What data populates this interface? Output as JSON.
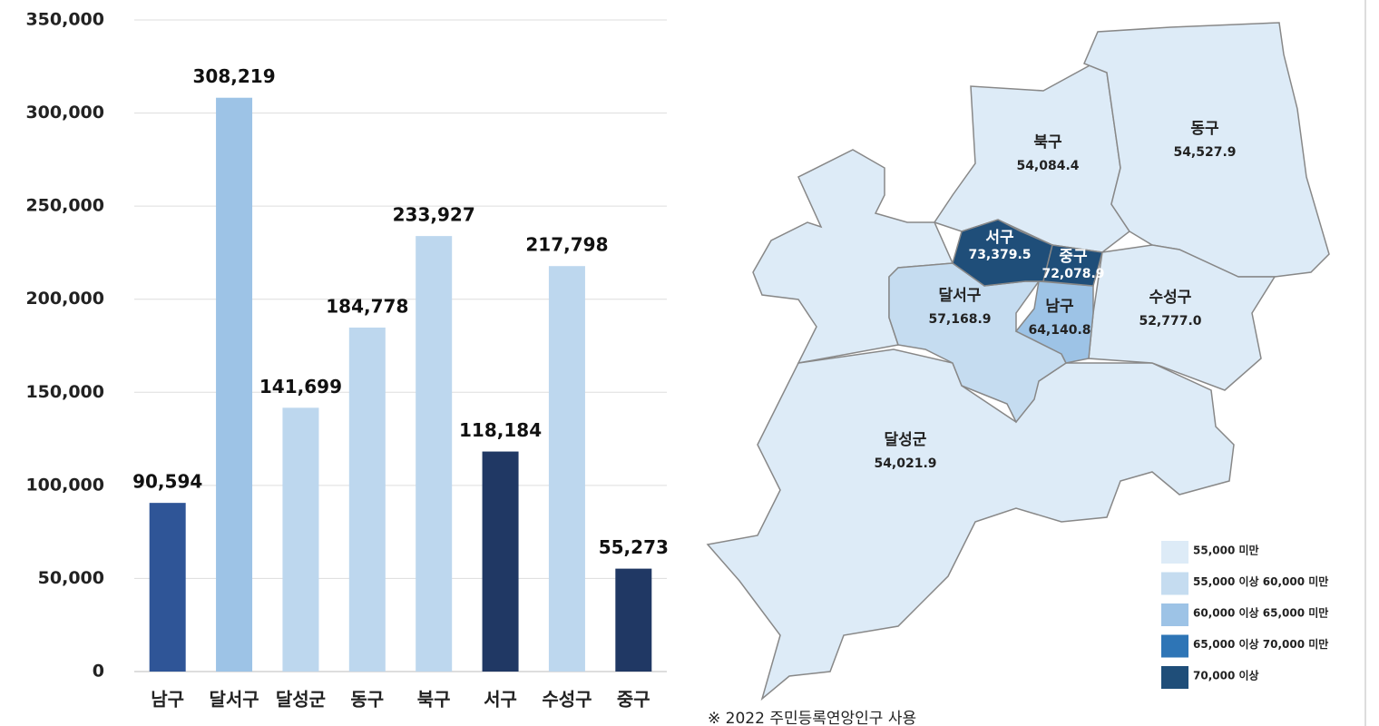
{
  "chart_data": [
    {
      "type": "bar",
      "categories": [
        "남구",
        "달서구",
        "달성군",
        "동구",
        "북구",
        "서구",
        "수성구",
        "중구"
      ],
      "values": [
        90594,
        308219,
        141699,
        184778,
        233927,
        118184,
        217798,
        55273
      ],
      "value_labels": [
        "90,594",
        "308,219",
        "141,699",
        "184,778",
        "233,927",
        "118,184",
        "217,798",
        "55,273"
      ],
      "colors": [
        "#2f5597",
        "#9dc3e6",
        "#bdd7ee",
        "#bdd7ee",
        "#bdd7ee",
        "#203864",
        "#bdd7ee",
        "#203864"
      ],
      "ylim": [
        0,
        350000
      ],
      "yticks": [
        0,
        {
          "value": 50000,
          "label": "50,000"
        },
        {
          "value": 100000,
          "label": "100,000"
        },
        {
          "value": 150000,
          "label": "150,000"
        },
        {
          "value": 200000,
          "label": "200,000"
        },
        {
          "value": 250000,
          "label": "250,000"
        },
        {
          "value": 300000,
          "label": "300,000"
        },
        {
          "value": 350000,
          "label": "350,000"
        }
      ],
      "grid": true
    },
    {
      "type": "map",
      "regions": [
        {
          "name": "달성군",
          "value": 54021.9,
          "value_label": "54,021.9",
          "color": "#ddebf7"
        },
        {
          "name": "북구",
          "value": 54084.4,
          "value_label": "54,084.4",
          "color": "#ddebf7"
        },
        {
          "name": "동구",
          "value": 54527.9,
          "value_label": "54,527.9",
          "color": "#ddebf7"
        },
        {
          "name": "수성구",
          "value": 52777.0,
          "value_label": "52,777.0",
          "color": "#ddebf7"
        },
        {
          "name": "달서구",
          "value": 57168.9,
          "value_label": "57,168.9",
          "color": "#c5dcf0"
        },
        {
          "name": "남구",
          "value": 64140.8,
          "value_label": "64,140.8",
          "color": "#9dc3e6"
        },
        {
          "name": "서구",
          "value": 73379.5,
          "value_label": "73,379.5",
          "color": "#1f4e79"
        },
        {
          "name": "중구",
          "value": 72078.9,
          "value_label": "72,078.9",
          "color": "#1f4e79"
        }
      ],
      "legend": [
        {
          "label": "55,000 미만",
          "color": "#ddebf7"
        },
        {
          "label": "55,000 이상 60,000 미만",
          "color": "#c5dcf0"
        },
        {
          "label": "60,000 이상 65,000 미만",
          "color": "#9dc3e6"
        },
        {
          "label": "65,000 이상 70,000 미만",
          "color": "#2e75b6"
        },
        {
          "label": "70,000 이상",
          "color": "#1f4e79"
        }
      ],
      "note": "※ 2022 주민등록연앙인구 사용"
    }
  ]
}
